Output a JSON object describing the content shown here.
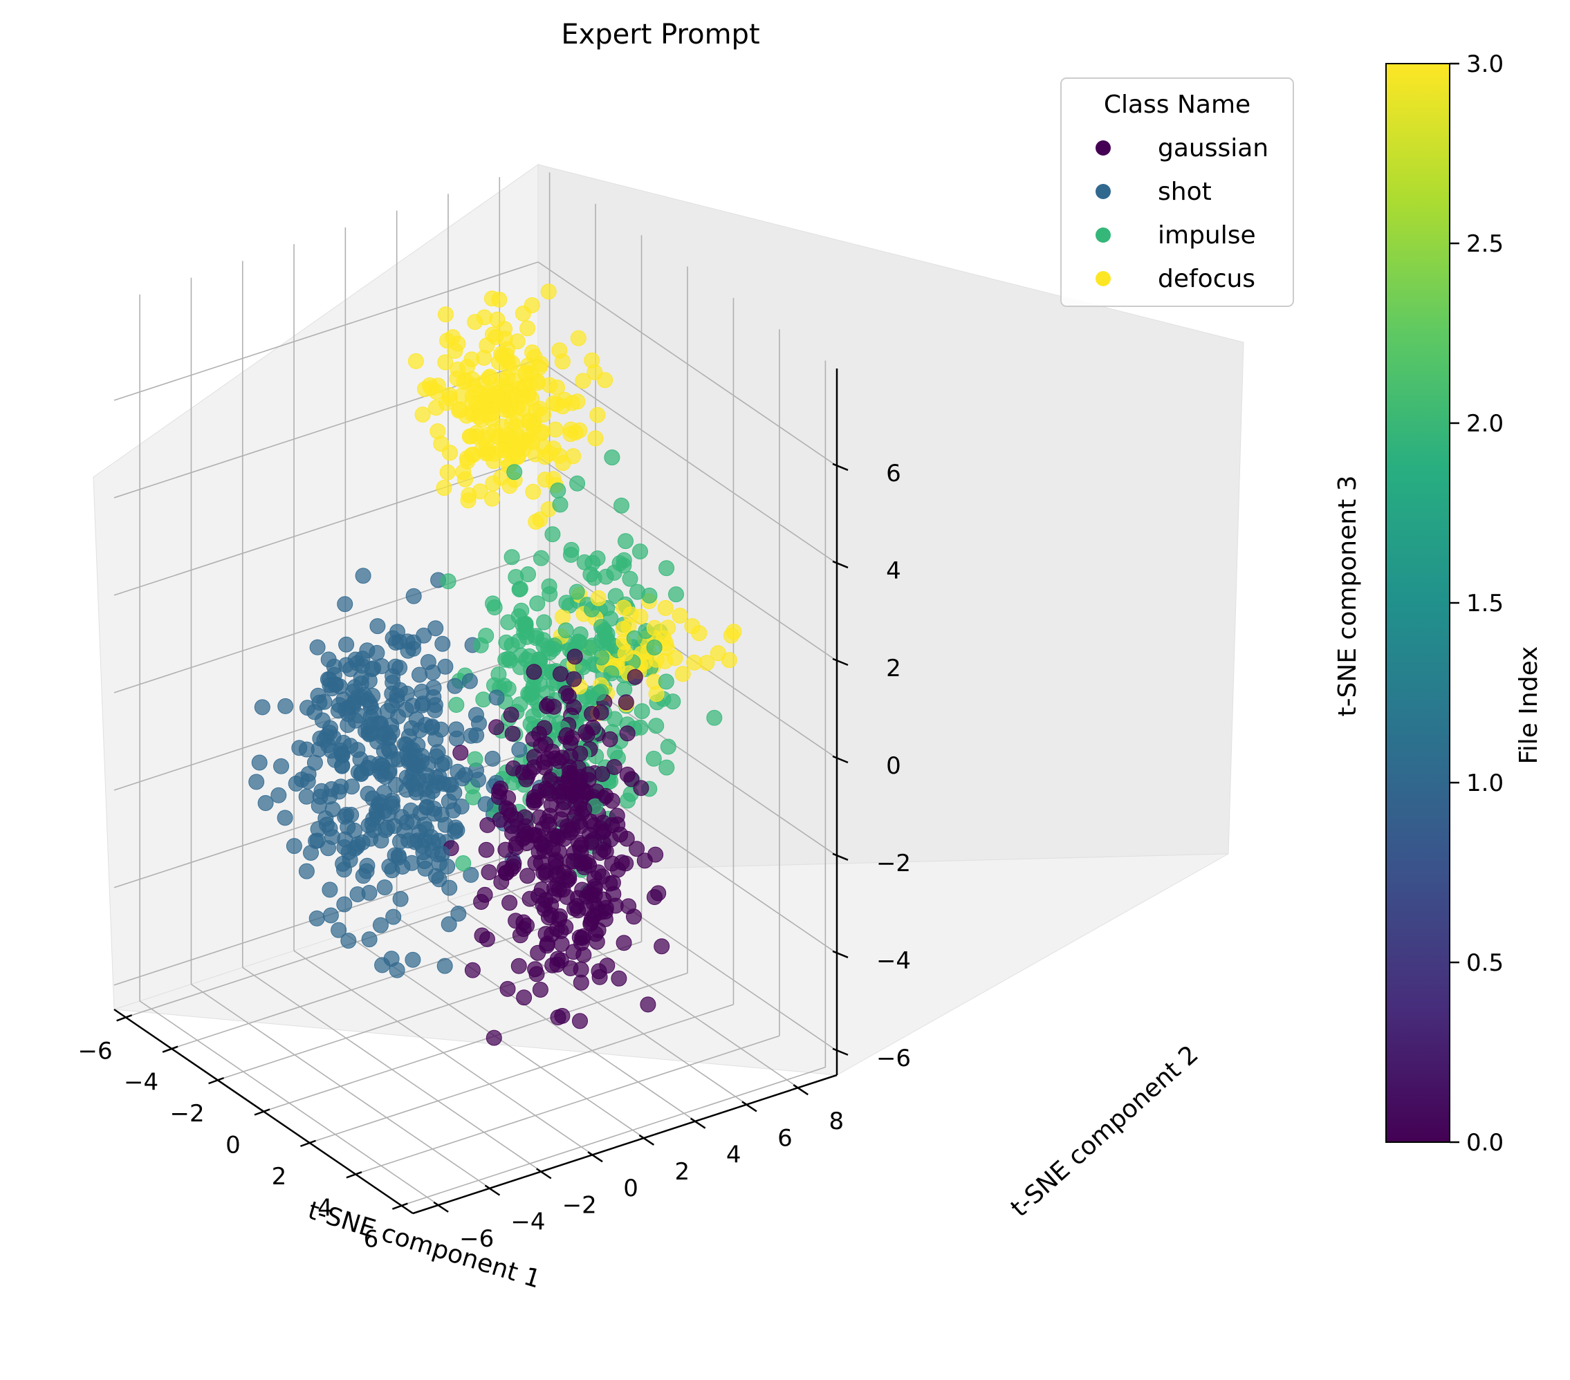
{
  "chart_data": {
    "type": "scatter",
    "projection": "3d",
    "title": "Expert Prompt",
    "xlabel": "t-SNE component 1",
    "ylabel": "t-SNE component 2",
    "zlabel": "t-SNE component 3",
    "xlim": [
      -6.5,
      6.5
    ],
    "ylim": [
      -7,
      9.5
    ],
    "zlim": [
      -6.5,
      8
    ],
    "xticks": [
      "−6",
      "−4",
      "−2",
      "0",
      "2",
      "4",
      "6"
    ],
    "yticks": [
      "−6",
      "−4",
      "−2",
      "0",
      "2",
      "4",
      "6",
      "8"
    ],
    "zticks": [
      "−6",
      "−4",
      "−2",
      "0",
      "2",
      "4",
      "6"
    ],
    "grid": true,
    "legend": {
      "title": "Class Name",
      "placement": "top-right",
      "entries": [
        {
          "label": "gaussian",
          "color": "#440154"
        },
        {
          "label": "shot",
          "color": "#31688e"
        },
        {
          "label": "impulse",
          "color": "#35b779"
        },
        {
          "label": "defocus",
          "color": "#fde725"
        }
      ]
    },
    "colorbar": {
      "label": "File Index",
      "colormap": "viridis",
      "range": [
        0,
        3
      ],
      "ticks": [
        "0.0",
        "0.5",
        "1.0",
        "1.5",
        "2.0",
        "2.5",
        "3.0"
      ]
    },
    "series": [
      {
        "name": "gaussian",
        "color": "#440154",
        "clusters": [
          {
            "x": [
              0.5,
              5.5
            ],
            "y": [
              -2,
              6
            ],
            "z": [
              -6,
              3
            ],
            "n": 330
          }
        ]
      },
      {
        "name": "shot",
        "color": "#31688e",
        "clusters": [
          {
            "x": [
              -6,
              2.5
            ],
            "y": [
              -5,
              4
            ],
            "z": [
              -5.5,
              3
            ],
            "n": 380
          }
        ]
      },
      {
        "name": "impulse",
        "color": "#35b779",
        "clusters": [
          {
            "x": [
              -3.5,
              4.5
            ],
            "y": [
              0,
              9
            ],
            "z": [
              -4,
              5
            ],
            "n": 300
          }
        ]
      },
      {
        "name": "defocus",
        "color": "#fde725",
        "clusters": [
          {
            "x": [
              -6,
              -1
            ],
            "y": [
              2,
              9
            ],
            "z": [
              2,
              7.5
            ],
            "n": 230
          },
          {
            "x": [
              -1,
              5
            ],
            "y": [
              3,
              9
            ],
            "z": [
              0,
              3
            ],
            "n": 60
          }
        ]
      }
    ]
  }
}
